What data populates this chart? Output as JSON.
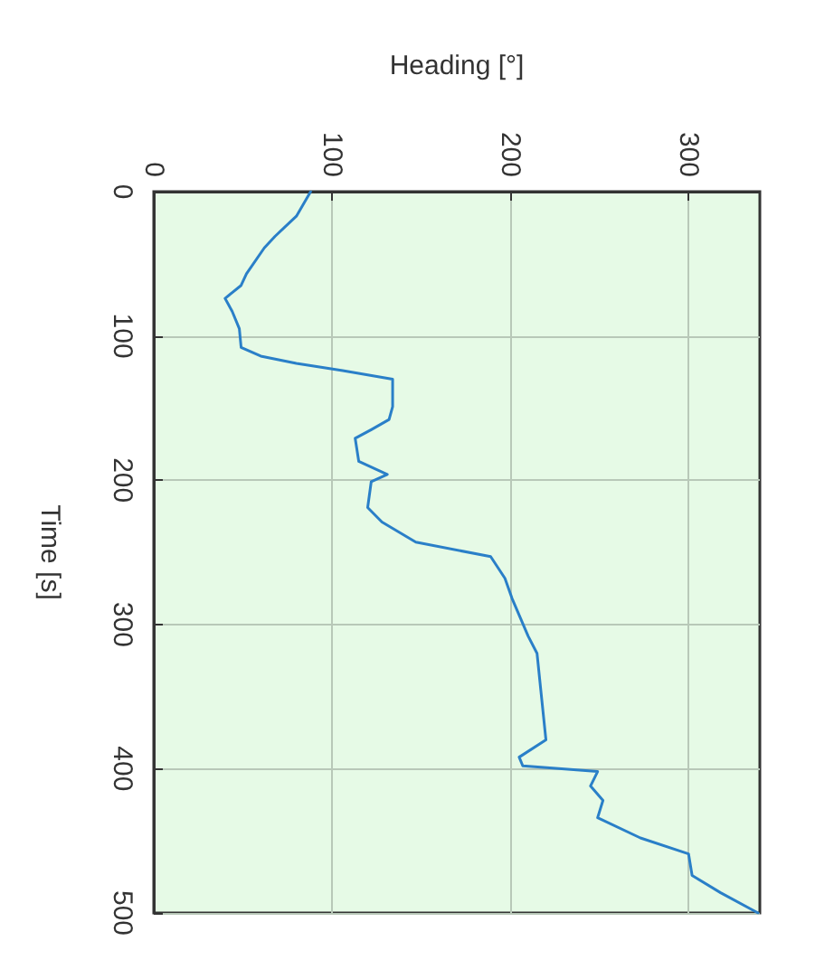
{
  "chart_data": {
    "type": "line",
    "xlabel": "Heading [°]",
    "ylabel": "Time [s]",
    "x": [
      88,
      80,
      68,
      62,
      52,
      49,
      40,
      44,
      48,
      49,
      60,
      80,
      106,
      134,
      134,
      132,
      122,
      113,
      115,
      131,
      122,
      120,
      128,
      147,
      189,
      197,
      201,
      210,
      215,
      220,
      205,
      207,
      249,
      245,
      252,
      249,
      273,
      300,
      302,
      318,
      339
    ],
    "series": [
      {
        "color": "#2a7fc8",
        "values": [
          0,
          17,
          31,
          39,
          57,
          65,
          74,
          83,
          95,
          108,
          114,
          119,
          124,
          130,
          149,
          158,
          165,
          171,
          187,
          196,
          201,
          219,
          229,
          243,
          253,
          268,
          282,
          308,
          320,
          380,
          392,
          398,
          402,
          412,
          422,
          434,
          448,
          459,
          474,
          486,
          500
        ]
      }
    ],
    "xlim": [
      0,
      340
    ],
    "xticks": [
      0,
      100,
      200,
      300
    ],
    "ylim": [
      500,
      0
    ],
    "yticks": [
      0,
      100,
      200,
      300,
      400,
      500
    ],
    "grid": true,
    "marker": "none",
    "line_style": "solid"
  }
}
